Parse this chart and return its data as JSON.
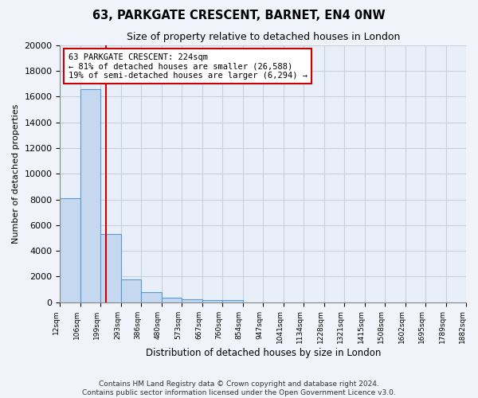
{
  "title1": "63, PARKGATE CRESCENT, BARNET, EN4 0NW",
  "title2": "Size of property relative to detached houses in London",
  "xlabel": "Distribution of detached houses by size in London",
  "ylabel": "Number of detached properties",
  "bin_edges": [
    12,
    106,
    199,
    293,
    386,
    480,
    573,
    667,
    760,
    854,
    947,
    1041,
    1134,
    1228,
    1321,
    1415,
    1508,
    1602,
    1695,
    1789,
    1882
  ],
  "bin_labels": [
    "12sqm",
    "106sqm",
    "199sqm",
    "293sqm",
    "386sqm",
    "480sqm",
    "573sqm",
    "667sqm",
    "760sqm",
    "854sqm",
    "947sqm",
    "1041sqm",
    "1134sqm",
    "1228sqm",
    "1321sqm",
    "1415sqm",
    "1508sqm",
    "1602sqm",
    "1695sqm",
    "1789sqm",
    "1882sqm"
  ],
  "bar_heights": [
    8100,
    16600,
    5300,
    1800,
    750,
    330,
    220,
    190,
    170,
    0,
    0,
    0,
    0,
    0,
    0,
    0,
    0,
    0,
    0,
    0
  ],
  "bar_facecolor": "#c5d8ef",
  "bar_edgecolor": "#5b9bd5",
  "bar_alpha": 1.0,
  "property_line_x": 224,
  "property_line_color": "#cc0000",
  "annotation_text": "63 PARKGATE CRESCENT: 224sqm\n← 81% of detached houses are smaller (26,588)\n19% of semi-detached houses are larger (6,294) →",
  "annotation_box_color": "#cc0000",
  "ylim": [
    0,
    20000
  ],
  "yticks": [
    0,
    2000,
    4000,
    6000,
    8000,
    10000,
    12000,
    14000,
    16000,
    18000,
    20000
  ],
  "bg_color": "#f0f4fa",
  "plot_bg_color": "#e8eff8",
  "grid_color": "#c8d0dc",
  "footer1": "Contains HM Land Registry data © Crown copyright and database right 2024.",
  "footer2": "Contains public sector information licensed under the Open Government Licence v3.0."
}
